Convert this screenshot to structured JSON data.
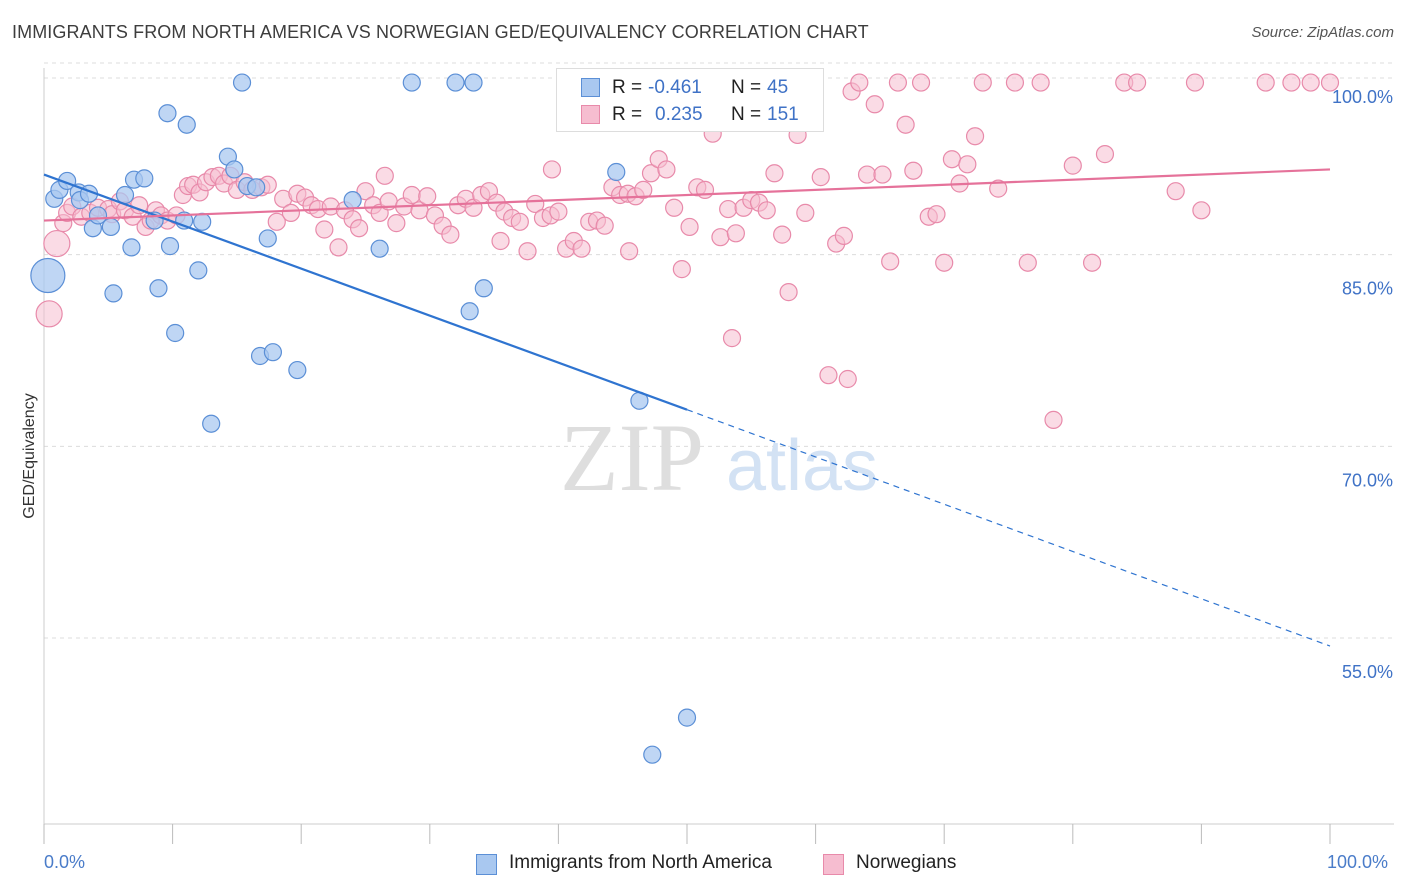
{
  "title": "IMMIGRANTS FROM NORTH AMERICA VS NORWEGIAN GED/EQUIVALENCY CORRELATION CHART",
  "source": "Source: ZipAtlas.com",
  "watermark": {
    "zip": "ZIP",
    "atlas": "atlas"
  },
  "legend": {
    "rows": [
      {
        "r_label": "R =",
        "r_value": "-0.461",
        "n_label": "N =",
        "n_value": "45"
      },
      {
        "r_label": "R =",
        "r_value": "0.235",
        "n_label": "N =",
        "n_value": "151"
      }
    ]
  },
  "bottom_legend": {
    "series_1": "Immigrants from North America",
    "series_2": "Norwegians"
  },
  "colors": {
    "blue_fill": "#a9c8f0",
    "blue_stroke": "#5b8fd6",
    "blue_line": "#2f74d0",
    "pink_fill": "#f6bdd0",
    "pink_stroke": "#e88aaa",
    "pink_line": "#e5729a",
    "value_text": "#3f72c6",
    "grid": "#dcdcdc"
  },
  "chart_data": {
    "type": "scatter",
    "title": "IMMIGRANTS FROM NORTH AMERICA VS NORWEGIAN GED/EQUIVALENCY CORRELATION CHART",
    "xlabel": "",
    "ylabel": "GED/Equivalency",
    "xlim": [
      0,
      100
    ],
    "ylim": [
      42,
      103
    ],
    "x_tick_labels": [
      "0.0%",
      "100.0%"
    ],
    "y_ticks": [
      100,
      85,
      70,
      55
    ],
    "y_tick_labels": [
      "100.0%",
      "85.0%",
      "70.0%",
      "55.0%"
    ],
    "grid": true,
    "legend_position": "top-center",
    "series": [
      {
        "name": "Immigrants from North America",
        "color": "#5b8fd6",
        "r": -0.461,
        "n": 45,
        "trend": {
          "x0": 0,
          "y0": 92.6,
          "x1": 50,
          "y1": 74.2,
          "dashed_to_x": 100,
          "dashed_to_y": 55.7
        },
        "points": [
          [
            0.3,
            84.7,
            3
          ],
          [
            0.8,
            90.7,
            1
          ],
          [
            1.2,
            91.4,
            1
          ],
          [
            1.8,
            92.1,
            1
          ],
          [
            2.7,
            91.2,
            1
          ],
          [
            2.8,
            90.6,
            1
          ],
          [
            3.5,
            91.1,
            1
          ],
          [
            3.8,
            88.4,
            1
          ],
          [
            4.2,
            89.4,
            1
          ],
          [
            5.2,
            88.5,
            1
          ],
          [
            5.4,
            83.3,
            1
          ],
          [
            6.3,
            91.0,
            1
          ],
          [
            6.8,
            86.9,
            1
          ],
          [
            7.0,
            92.2,
            1
          ],
          [
            7.8,
            92.3,
            1
          ],
          [
            8.6,
            89.0,
            1
          ],
          [
            8.9,
            83.7,
            1
          ],
          [
            9.6,
            97.4,
            1
          ],
          [
            9.8,
            87.0,
            1
          ],
          [
            10.2,
            80.2,
            1
          ],
          [
            10.9,
            89.0,
            1
          ],
          [
            11.1,
            96.5,
            1
          ],
          [
            12.0,
            85.1,
            1
          ],
          [
            12.3,
            88.9,
            1
          ],
          [
            13.0,
            73.1,
            1
          ],
          [
            14.3,
            94.0,
            1
          ],
          [
            14.8,
            93.0,
            1
          ],
          [
            15.4,
            99.8,
            1
          ],
          [
            15.8,
            91.7,
            1
          ],
          [
            16.5,
            91.6,
            1
          ],
          [
            16.8,
            78.4,
            1
          ],
          [
            17.4,
            87.6,
            1
          ],
          [
            17.8,
            78.7,
            1
          ],
          [
            19.7,
            77.3,
            1
          ],
          [
            24.0,
            90.6,
            1
          ],
          [
            26.1,
            86.8,
            1
          ],
          [
            28.6,
            99.8,
            1
          ],
          [
            32.0,
            99.8,
            1
          ],
          [
            33.4,
            99.8,
            1
          ],
          [
            33.1,
            81.9,
            1
          ],
          [
            34.2,
            83.7,
            1
          ],
          [
            44.5,
            92.8,
            1
          ],
          [
            46.3,
            74.9,
            1
          ],
          [
            47.3,
            47.2,
            1
          ],
          [
            50.0,
            50.1,
            1
          ]
        ]
      },
      {
        "name": "Norwegians",
        "color": "#e88aaa",
        "r": 0.235,
        "n": 151,
        "trend": {
          "x0": 0,
          "y0": 89.0,
          "x1": 100,
          "y1": 93.0
        },
        "points": [
          [
            0.4,
            81.7,
            2
          ],
          [
            1.0,
            87.2,
            2
          ],
          [
            1.5,
            88.8,
            1
          ],
          [
            1.8,
            89.6,
            1
          ],
          [
            2.2,
            90.1,
            1
          ],
          [
            2.9,
            89.3,
            1
          ],
          [
            3.6,
            89.6,
            1
          ],
          [
            4.2,
            90.0,
            1
          ],
          [
            5.0,
            89.9,
            1
          ],
          [
            5.3,
            89.5,
            1
          ],
          [
            5.9,
            90.5,
            1
          ],
          [
            6.3,
            89.8,
            1
          ],
          [
            6.9,
            89.3,
            1
          ],
          [
            7.4,
            90.2,
            1
          ],
          [
            7.9,
            88.5,
            1
          ],
          [
            8.3,
            89.0,
            1
          ],
          [
            8.7,
            89.8,
            1
          ],
          [
            9.1,
            89.4,
            1
          ],
          [
            9.6,
            89.0,
            1
          ],
          [
            10.3,
            89.4,
            1
          ],
          [
            10.8,
            91.0,
            1
          ],
          [
            11.2,
            91.7,
            1
          ],
          [
            11.6,
            91.8,
            1
          ],
          [
            12.1,
            91.2,
            1
          ],
          [
            12.6,
            92.0,
            1
          ],
          [
            13.1,
            92.4,
            1
          ],
          [
            13.6,
            92.5,
            1
          ],
          [
            14.0,
            91.9,
            1
          ],
          [
            14.5,
            92.5,
            1
          ],
          [
            15.0,
            91.4,
            1
          ],
          [
            15.6,
            92.0,
            1
          ],
          [
            16.2,
            91.4,
            1
          ],
          [
            16.9,
            91.6,
            1
          ],
          [
            17.4,
            91.8,
            1
          ],
          [
            18.1,
            88.9,
            1
          ],
          [
            18.6,
            90.7,
            1
          ],
          [
            19.2,
            89.6,
            1
          ],
          [
            19.7,
            91.1,
            1
          ],
          [
            20.3,
            90.8,
            1
          ],
          [
            20.8,
            90.2,
            1
          ],
          [
            21.3,
            89.9,
            1
          ],
          [
            21.8,
            88.3,
            1
          ],
          [
            22.3,
            90.1,
            1
          ],
          [
            22.9,
            86.9,
            1
          ],
          [
            23.4,
            89.8,
            1
          ],
          [
            24.0,
            89.1,
            1
          ],
          [
            24.5,
            88.4,
            1
          ],
          [
            25.0,
            91.3,
            1
          ],
          [
            25.6,
            90.2,
            1
          ],
          [
            26.1,
            89.6,
            1
          ],
          [
            26.8,
            90.5,
            1
          ],
          [
            27.4,
            88.8,
            1
          ],
          [
            28.0,
            90.1,
            1
          ],
          [
            28.6,
            91.0,
            1
          ],
          [
            29.2,
            89.8,
            1
          ],
          [
            29.8,
            90.9,
            1
          ],
          [
            30.4,
            89.4,
            1
          ],
          [
            31.0,
            88.6,
            1
          ],
          [
            31.6,
            87.9,
            1
          ],
          [
            32.2,
            90.2,
            1
          ],
          [
            32.8,
            90.7,
            1
          ],
          [
            33.4,
            90.0,
            1
          ],
          [
            34.0,
            91.0,
            1
          ],
          [
            34.6,
            91.3,
            1
          ],
          [
            35.2,
            90.4,
            1
          ],
          [
            35.8,
            89.7,
            1
          ],
          [
            36.4,
            89.2,
            1
          ],
          [
            37.0,
            88.9,
            1
          ],
          [
            37.6,
            86.6,
            1
          ],
          [
            38.2,
            90.3,
            1
          ],
          [
            38.8,
            89.2,
            1
          ],
          [
            39.4,
            89.4,
            1
          ],
          [
            40.0,
            89.7,
            1
          ],
          [
            40.6,
            86.8,
            1
          ],
          [
            41.2,
            87.4,
            1
          ],
          [
            41.8,
            86.8,
            1
          ],
          [
            42.4,
            88.9,
            1
          ],
          [
            43.0,
            89.0,
            1
          ],
          [
            43.6,
            88.6,
            1
          ],
          [
            44.2,
            91.6,
            1
          ],
          [
            44.8,
            91.0,
            1
          ],
          [
            45.4,
            91.1,
            1
          ],
          [
            46.0,
            90.9,
            1
          ],
          [
            46.6,
            91.4,
            1
          ],
          [
            47.2,
            92.7,
            1
          ],
          [
            47.8,
            93.8,
            1
          ],
          [
            48.4,
            93.0,
            1
          ],
          [
            49.0,
            90.0,
            1
          ],
          [
            49.6,
            85.2,
            1
          ],
          [
            50.2,
            88.5,
            1
          ],
          [
            50.8,
            91.6,
            1
          ],
          [
            51.4,
            91.4,
            1
          ],
          [
            52.0,
            95.8,
            1
          ],
          [
            52.6,
            87.7,
            1
          ],
          [
            53.2,
            89.9,
            1
          ],
          [
            53.8,
            88.0,
            1
          ],
          [
            54.4,
            90.0,
            1
          ],
          [
            55.0,
            90.6,
            1
          ],
          [
            55.6,
            90.4,
            1
          ],
          [
            56.2,
            89.8,
            1
          ],
          [
            56.8,
            92.7,
            1
          ],
          [
            57.4,
            87.9,
            1
          ],
          [
            57.9,
            83.4,
            1
          ],
          [
            58.6,
            95.7,
            1
          ],
          [
            59.2,
            89.6,
            1
          ],
          [
            59.8,
            99.8,
            1
          ],
          [
            60.4,
            92.4,
            1
          ],
          [
            61.0,
            76.9,
            1
          ],
          [
            61.6,
            87.2,
            1
          ],
          [
            62.2,
            87.8,
            1
          ],
          [
            62.8,
            99.1,
            1
          ],
          [
            63.4,
            99.8,
            1
          ],
          [
            64.0,
            92.6,
            1
          ],
          [
            64.6,
            98.1,
            1
          ],
          [
            65.2,
            92.6,
            1
          ],
          [
            65.8,
            85.8,
            1
          ],
          [
            66.4,
            99.8,
            1
          ],
          [
            67.0,
            96.5,
            1
          ],
          [
            67.6,
            92.9,
            1
          ],
          [
            68.2,
            99.8,
            1
          ],
          [
            68.8,
            89.3,
            1
          ],
          [
            69.4,
            89.5,
            1
          ],
          [
            70.0,
            85.7,
            1
          ],
          [
            70.6,
            93.8,
            1
          ],
          [
            71.2,
            91.9,
            1
          ],
          [
            71.8,
            93.4,
            1
          ],
          [
            72.4,
            95.6,
            1
          ],
          [
            73.0,
            99.8,
            1
          ],
          [
            74.2,
            91.5,
            1
          ],
          [
            75.5,
            99.8,
            1
          ],
          [
            76.5,
            85.7,
            1
          ],
          [
            77.5,
            99.8,
            1
          ],
          [
            78.5,
            73.4,
            1
          ],
          [
            80.0,
            93.3,
            1
          ],
          [
            81.5,
            85.7,
            1
          ],
          [
            82.5,
            94.2,
            1
          ],
          [
            84.0,
            99.8,
            1
          ],
          [
            85.0,
            99.8,
            1
          ],
          [
            88.0,
            91.3,
            1
          ],
          [
            89.5,
            99.8,
            1
          ],
          [
            90.0,
            89.8,
            1
          ],
          [
            95.0,
            99.8,
            1
          ],
          [
            97.0,
            99.8,
            1
          ],
          [
            98.5,
            99.8,
            1
          ],
          [
            100.0,
            99.8,
            1
          ],
          [
            53.5,
            79.8,
            1
          ],
          [
            62.5,
            76.6,
            1
          ],
          [
            57.0,
            99.8,
            1
          ],
          [
            45.5,
            86.6,
            1
          ],
          [
            39.5,
            93.0,
            1
          ],
          [
            35.5,
            87.4,
            1
          ],
          [
            26.5,
            92.5,
            1
          ]
        ]
      }
    ]
  }
}
